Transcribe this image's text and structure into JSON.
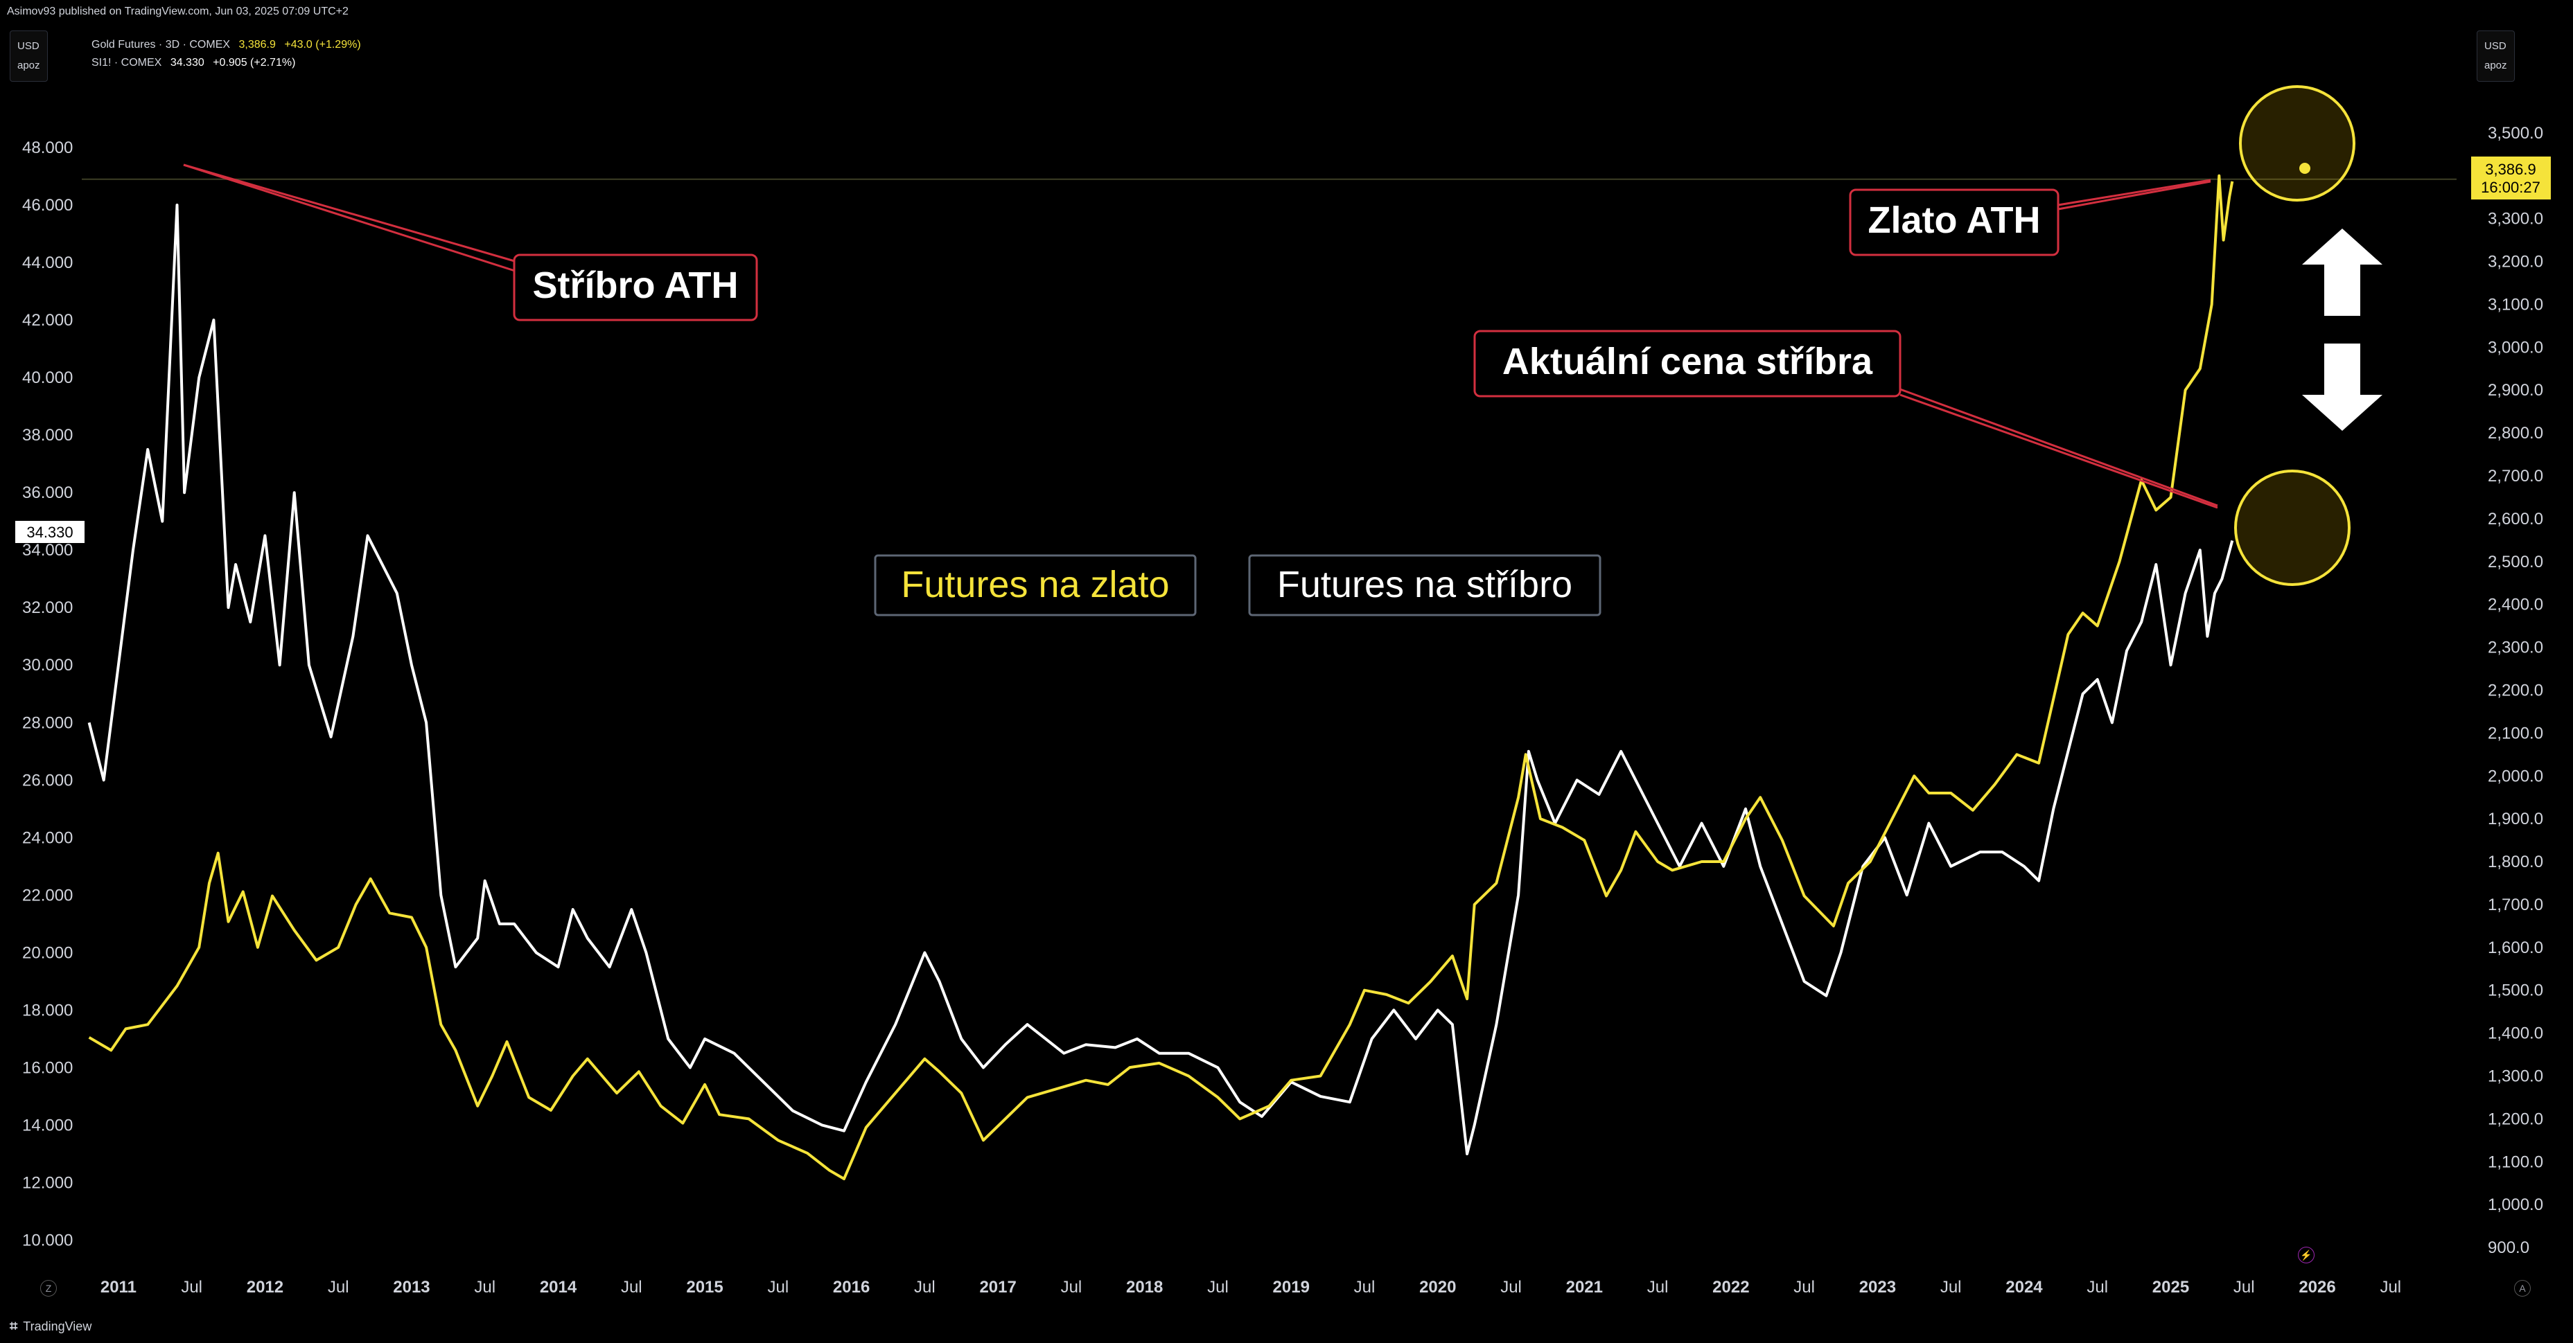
{
  "header": {
    "publisher_line": "Asimov93 published on TradingView.com, Jun 03, 2025 07:09 UTC+2"
  },
  "left_unit": {
    "currency": "USD",
    "mode": "apoz"
  },
  "right_unit": {
    "currency": "USD",
    "mode": "apoz"
  },
  "legend": {
    "gold": {
      "name": "Gold Futures · 3D · COMEX",
      "price": "3,386.9",
      "change": "+43.0 (+1.29%)"
    },
    "silver": {
      "name": "SI1! · COMEX",
      "price": "34.330",
      "change": "+0.905 (+2.71%)"
    }
  },
  "footer": {
    "brand": "TradingView",
    "logo": "tradingview-logo-icon"
  },
  "colors": {
    "gold": "#f5e33a",
    "silver": "#ffffff",
    "annotation_border": "#d32f3f",
    "background": "#000000",
    "grid_text": "#d1d4dc"
  },
  "chart_data": {
    "type": "line",
    "x_axis": {
      "range": [
        2010.75,
        2026.95
      ],
      "ticks": [
        {
          "t": 2011.0,
          "label": "2011"
        },
        {
          "t": 2011.5,
          "label": "Jul"
        },
        {
          "t": 2012.0,
          "label": "2012"
        },
        {
          "t": 2012.5,
          "label": "Jul"
        },
        {
          "t": 2013.0,
          "label": "2013"
        },
        {
          "t": 2013.5,
          "label": "Jul"
        },
        {
          "t": 2014.0,
          "label": "2014"
        },
        {
          "t": 2014.5,
          "label": "Jul"
        },
        {
          "t": 2015.0,
          "label": "2015"
        },
        {
          "t": 2015.5,
          "label": "Jul"
        },
        {
          "t": 2016.0,
          "label": "2016"
        },
        {
          "t": 2016.5,
          "label": "Jul"
        },
        {
          "t": 2017.0,
          "label": "2017"
        },
        {
          "t": 2017.5,
          "label": "Jul"
        },
        {
          "t": 2018.0,
          "label": "2018"
        },
        {
          "t": 2018.5,
          "label": "Jul"
        },
        {
          "t": 2019.0,
          "label": "2019"
        },
        {
          "t": 2019.5,
          "label": "Jul"
        },
        {
          "t": 2020.0,
          "label": "2020"
        },
        {
          "t": 2020.5,
          "label": "Jul"
        },
        {
          "t": 2021.0,
          "label": "2021"
        },
        {
          "t": 2021.5,
          "label": "Jul"
        },
        {
          "t": 2022.0,
          "label": "2022"
        },
        {
          "t": 2022.5,
          "label": "Jul"
        },
        {
          "t": 2023.0,
          "label": "2023"
        },
        {
          "t": 2023.5,
          "label": "Jul"
        },
        {
          "t": 2024.0,
          "label": "2024"
        },
        {
          "t": 2024.5,
          "label": "Jul"
        },
        {
          "t": 2025.0,
          "label": "2025"
        },
        {
          "t": 2025.5,
          "label": "Jul"
        },
        {
          "t": 2026.0,
          "label": "2026"
        },
        {
          "t": 2026.5,
          "label": "Jul"
        }
      ]
    },
    "left_axis": {
      "range": [
        9.0,
        50.0
      ],
      "ticks": [
        "10.000",
        "12.000",
        "14.000",
        "16.000",
        "18.000",
        "20.000",
        "22.000",
        "24.000",
        "26.000",
        "28.000",
        "30.000",
        "32.000",
        "34.000",
        "36.000",
        "38.000",
        "40.000",
        "42.000",
        "44.000",
        "46.000",
        "48.000"
      ],
      "current_label": "34.330",
      "current_value": 34.33
    },
    "right_axis": {
      "range": [
        850,
        3600
      ],
      "ticks": [
        "900.0",
        "1,000.0",
        "1,100.0",
        "1,200.0",
        "1,300.0",
        "1,400.0",
        "1,500.0",
        "1,600.0",
        "1,700.0",
        "1,800.0",
        "1,900.0",
        "2,000.0",
        "2,100.0",
        "2,200.0",
        "2,300.0",
        "2,400.0",
        "2,500.0",
        "2,600.0",
        "2,700.0",
        "2,800.0",
        "2,900.0",
        "3,000.0",
        "3,100.0",
        "3,200.0",
        "3,300.0",
        "3,500.0"
      ],
      "current_label": "3,386.9",
      "countdown_label": "16:00:27",
      "current_value": 3386.9
    },
    "series": [
      {
        "name": "Gold Futures",
        "axis": "right",
        "color": "#f5e33a",
        "x": [
          2010.8,
          2010.95,
          2011.05,
          2011.2,
          2011.4,
          2011.55,
          2011.62,
          2011.68,
          2011.75,
          2011.85,
          2011.95,
          2012.05,
          2012.2,
          2012.35,
          2012.5,
          2012.62,
          2012.72,
          2012.85,
          2013.0,
          2013.1,
          2013.2,
          2013.3,
          2013.45,
          2013.55,
          2013.65,
          2013.8,
          2013.95,
          2014.1,
          2014.2,
          2014.4,
          2014.55,
          2014.7,
          2014.85,
          2015.0,
          2015.1,
          2015.3,
          2015.5,
          2015.7,
          2015.85,
          2015.95,
          2016.1,
          2016.3,
          2016.5,
          2016.6,
          2016.75,
          2016.9,
          2017.05,
          2017.2,
          2017.4,
          2017.6,
          2017.75,
          2017.9,
          2018.1,
          2018.3,
          2018.5,
          2018.65,
          2018.85,
          2019.0,
          2019.2,
          2019.4,
          2019.5,
          2019.65,
          2019.8,
          2019.95,
          2020.1,
          2020.2,
          2020.25,
          2020.4,
          2020.55,
          2020.6,
          2020.7,
          2020.85,
          2021.0,
          2021.15,
          2021.25,
          2021.35,
          2021.5,
          2021.6,
          2021.8,
          2021.95,
          2022.1,
          2022.2,
          2022.35,
          2022.5,
          2022.7,
          2022.8,
          2022.95,
          2023.1,
          2023.25,
          2023.35,
          2023.5,
          2023.65,
          2023.8,
          2023.95,
          2024.1,
          2024.2,
          2024.3,
          2024.4,
          2024.5,
          2024.65,
          2024.8,
          2024.9,
          2025.0,
          2025.1,
          2025.2,
          2025.28,
          2025.33,
          2025.36,
          2025.4,
          2025.42
        ],
        "values": [
          1390,
          1360,
          1410,
          1420,
          1510,
          1600,
          1750,
          1820,
          1660,
          1730,
          1600,
          1720,
          1640,
          1570,
          1600,
          1700,
          1760,
          1680,
          1670,
          1600,
          1420,
          1360,
          1230,
          1300,
          1380,
          1250,
          1220,
          1300,
          1340,
          1260,
          1310,
          1230,
          1190,
          1280,
          1210,
          1200,
          1150,
          1120,
          1080,
          1060,
          1180,
          1260,
          1340,
          1310,
          1260,
          1150,
          1200,
          1250,
          1270,
          1290,
          1280,
          1320,
          1330,
          1300,
          1250,
          1200,
          1230,
          1290,
          1300,
          1420,
          1500,
          1490,
          1470,
          1520,
          1580,
          1480,
          1700,
          1750,
          1950,
          2050,
          1900,
          1880,
          1850,
          1720,
          1780,
          1870,
          1800,
          1780,
          1800,
          1800,
          1900,
          1950,
          1850,
          1720,
          1650,
          1750,
          1800,
          1900,
          2000,
          1960,
          1960,
          1920,
          1980,
          2050,
          2030,
          2180,
          2330,
          2380,
          2350,
          2500,
          2690,
          2620,
          2650,
          2900,
          2950,
          3100,
          3400,
          3250,
          3350,
          3386.9
        ]
      },
      {
        "name": "SI1!",
        "axis": "left",
        "color": "#ffffff",
        "x": [
          2010.8,
          2010.9,
          2011.0,
          2011.1,
          2011.2,
          2011.3,
          2011.4,
          2011.45,
          2011.5,
          2011.55,
          2011.65,
          2011.75,
          2011.8,
          2011.9,
          2012.0,
          2012.1,
          2012.2,
          2012.3,
          2012.45,
          2012.6,
          2012.7,
          2012.8,
          2012.9,
          2013.0,
          2013.1,
          2013.2,
          2013.3,
          2013.45,
          2013.5,
          2013.6,
          2013.7,
          2013.85,
          2014.0,
          2014.1,
          2014.2,
          2014.35,
          2014.5,
          2014.6,
          2014.75,
          2014.9,
          2015.0,
          2015.2,
          2015.4,
          2015.6,
          2015.8,
          2015.95,
          2016.1,
          2016.3,
          2016.5,
          2016.6,
          2016.75,
          2016.9,
          2017.05,
          2017.2,
          2017.45,
          2017.6,
          2017.8,
          2017.95,
          2018.1,
          2018.3,
          2018.5,
          2018.65,
          2018.8,
          2019.0,
          2019.2,
          2019.4,
          2019.55,
          2019.7,
          2019.85,
          2020.0,
          2020.1,
          2020.2,
          2020.25,
          2020.4,
          2020.55,
          2020.62,
          2020.68,
          2020.8,
          2020.95,
          2021.1,
          2021.25,
          2021.4,
          2021.5,
          2021.65,
          2021.8,
          2021.95,
          2022.1,
          2022.2,
          2022.35,
          2022.5,
          2022.65,
          2022.75,
          2022.9,
          2023.05,
          2023.2,
          2023.35,
          2023.5,
          2023.7,
          2023.85,
          2024.0,
          2024.1,
          2024.2,
          2024.3,
          2024.4,
          2024.5,
          2024.6,
          2024.7,
          2024.8,
          2024.9,
          2025.0,
          2025.1,
          2025.2,
          2025.25,
          2025.3,
          2025.35,
          2025.42
        ],
        "values": [
          28.0,
          26.0,
          30.0,
          34.0,
          37.5,
          35.0,
          46.0,
          36.0,
          38.0,
          40.0,
          42.0,
          32.0,
          33.5,
          31.5,
          34.5,
          30.0,
          36.0,
          30.0,
          27.5,
          31.0,
          34.5,
          33.5,
          32.5,
          30.0,
          28.0,
          22.0,
          19.5,
          20.5,
          22.5,
          21.0,
          21.0,
          20.0,
          19.5,
          21.5,
          20.5,
          19.5,
          21.5,
          20.0,
          17.0,
          16.0,
          17.0,
          16.5,
          15.5,
          14.5,
          14.0,
          13.8,
          15.5,
          17.5,
          20.0,
          19.0,
          17.0,
          16.0,
          16.8,
          17.5,
          16.5,
          16.8,
          16.7,
          17.0,
          16.5,
          16.5,
          16.0,
          14.8,
          14.3,
          15.5,
          15.0,
          14.8,
          17.0,
          18.0,
          17.0,
          18.0,
          17.5,
          13.0,
          14.0,
          17.5,
          22.0,
          27.0,
          26.0,
          24.5,
          26.0,
          25.5,
          27.0,
          25.5,
          24.5,
          23.0,
          24.5,
          23.0,
          25.0,
          23.0,
          21.0,
          19.0,
          18.5,
          20.0,
          23.0,
          24.0,
          22.0,
          24.5,
          23.0,
          23.5,
          23.5,
          23.0,
          22.5,
          25.0,
          27.0,
          29.0,
          29.5,
          28.0,
          30.5,
          31.5,
          33.5,
          30.0,
          32.5,
          34.0,
          31.0,
          32.5,
          33.0,
          34.33
        ]
      }
    ],
    "annotations": [
      {
        "text": "Stříbro ATH",
        "border": "#d32f3f"
      },
      {
        "text": "Zlato ATH",
        "border": "#d32f3f"
      },
      {
        "text": "Aktuální cena stříbra",
        "border": "#d32f3f"
      },
      {
        "text": "Futures na zlato",
        "color": "#f5e33a"
      },
      {
        "text": "Futures na stříbro",
        "color": "#ffffff"
      }
    ],
    "grid": false,
    "legend_position": "top-left"
  }
}
